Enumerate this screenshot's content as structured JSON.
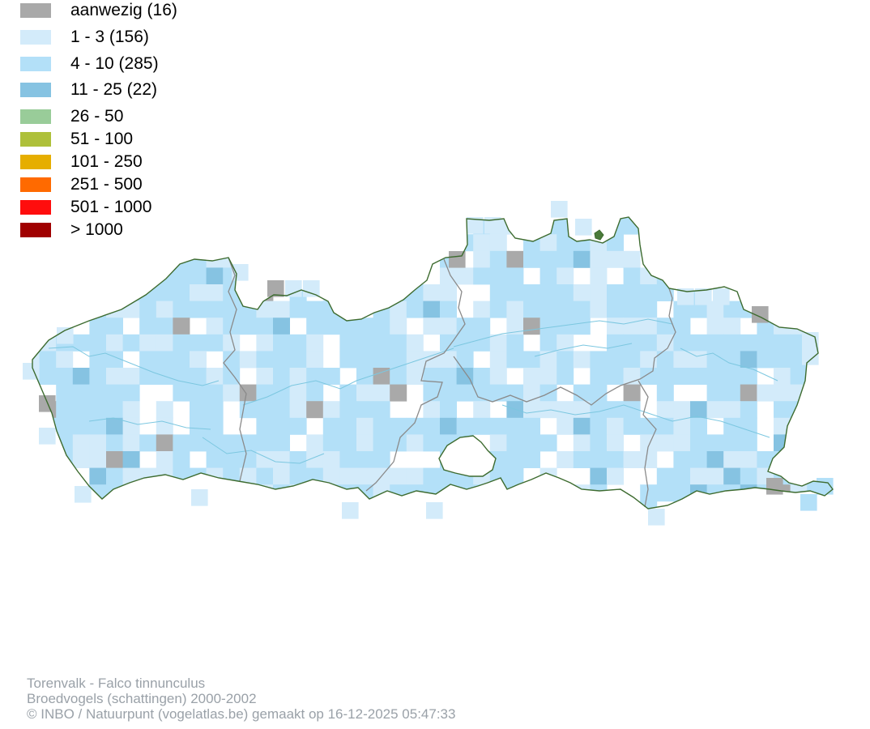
{
  "legend": {
    "items": [
      {
        "label": "aanwezig (16)",
        "color": "#a9a9a9"
      },
      {
        "label": "1 - 3 (156)",
        "color": "#d3ebfa"
      },
      {
        "label": "4 - 10 (285)",
        "color": "#b3e0f8"
      },
      {
        "label": "11 - 25 (22)",
        "color": "#86c3e2"
      },
      {
        "label": "26 - 50",
        "color": "#99cc99"
      },
      {
        "label": "51 - 100",
        "color": "#aec03a"
      },
      {
        "label": "101 - 250",
        "color": "#e6ae00"
      },
      {
        "label": "251 - 500",
        "color": "#ff6a00"
      },
      {
        "label": "501 - 1000",
        "color": "#ff0d0d"
      },
      {
        "label": "> 1000",
        "color": "#a00000"
      }
    ]
  },
  "map": {
    "border_color": "#3d6b2f",
    "province_border_color": "#8a8a8a",
    "river_color": "#7cc7e0"
  },
  "credits": {
    "line1": "Torenvalk - Falco tinnunculus",
    "line2": "Broedvogels (schattingen) 2000-2002",
    "line3": "© INBO / Natuurpunt (vogelatlas.be) gemaakt op 16-12-2025 05:47:33"
  }
}
